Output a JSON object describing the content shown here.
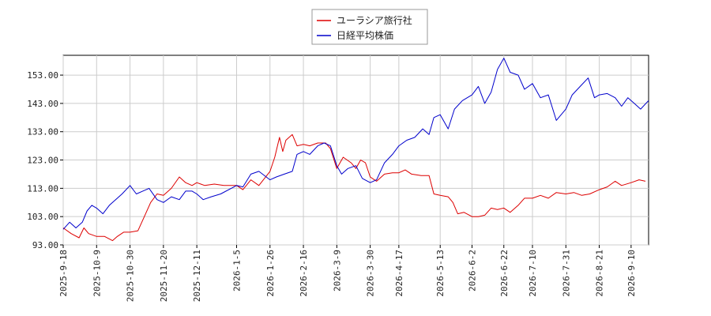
{
  "chart_data": {
    "type": "line",
    "title": "",
    "xlabel": "",
    "ylabel": "",
    "ylim": [
      93.0,
      160.0
    ],
    "yticks": [
      "93.00",
      "103.00",
      "113.00",
      "123.00",
      "133.00",
      "143.00",
      "153.00"
    ],
    "ytick_values": [
      93,
      103,
      113,
      123,
      133,
      143,
      153
    ],
    "xticks": [
      "2025-9-18",
      "2025-10-9",
      "2025-10-30",
      "2025-11-20",
      "2025-12-11",
      "2026-1-5",
      "2026-1-26",
      "2026-2-16",
      "2026-3-9",
      "2026-3-30",
      "2026-4-17",
      "2026-5-13",
      "2026-6-2",
      "2026-6-22",
      "2026-7-10",
      "2026-7-31",
      "2026-8-21",
      "2026-9-10"
    ],
    "x_range": [
      "2025-09-18",
      "2026-09-21"
    ],
    "grid": true,
    "legend_position": "top-center",
    "series": [
      {
        "name": "ユーラシア旅行社",
        "color": "#dd0000",
        "points": [
          [
            "2025-09-18",
            99
          ],
          [
            "2025-09-23",
            97
          ],
          [
            "2025-09-28",
            95.5
          ],
          [
            "2025-10-01",
            99
          ],
          [
            "2025-10-04",
            97
          ],
          [
            "2025-10-09",
            96
          ],
          [
            "2025-10-14",
            96
          ],
          [
            "2025-10-19",
            94.5
          ],
          [
            "2025-10-22",
            96
          ],
          [
            "2025-10-26",
            97.5
          ],
          [
            "2025-10-30",
            97.5
          ],
          [
            "2025-11-04",
            98
          ],
          [
            "2025-11-08",
            103
          ],
          [
            "2025-11-12",
            108
          ],
          [
            "2025-11-16",
            111
          ],
          [
            "2025-11-20",
            110.5
          ],
          [
            "2025-11-25",
            113
          ],
          [
            "2025-11-30",
            117
          ],
          [
            "2025-12-04",
            115
          ],
          [
            "2025-12-08",
            114
          ],
          [
            "2025-12-11",
            115
          ],
          [
            "2025-12-16",
            114
          ],
          [
            "2025-12-22",
            114.5
          ],
          [
            "2025-12-28",
            114
          ],
          [
            "2026-01-05",
            114
          ],
          [
            "2026-01-09",
            112.5
          ],
          [
            "2026-01-14",
            116
          ],
          [
            "2026-01-19",
            114
          ],
          [
            "2026-01-26",
            119
          ],
          [
            "2026-01-29",
            124
          ],
          [
            "2026-02-01",
            131
          ],
          [
            "2026-02-03",
            126
          ],
          [
            "2026-02-05",
            130
          ],
          [
            "2026-02-09",
            132
          ],
          [
            "2026-02-12",
            128
          ],
          [
            "2026-02-16",
            128.5
          ],
          [
            "2026-02-20",
            128
          ],
          [
            "2026-02-25",
            129
          ],
          [
            "2026-03-02",
            129
          ],
          [
            "2026-03-05",
            127
          ],
          [
            "2026-03-09",
            120
          ],
          [
            "2026-03-13",
            124
          ],
          [
            "2026-03-18",
            122
          ],
          [
            "2026-03-21",
            120
          ],
          [
            "2026-03-24",
            123
          ],
          [
            "2026-03-27",
            122
          ],
          [
            "2026-03-30",
            117
          ],
          [
            "2026-04-03",
            115.5
          ],
          [
            "2026-04-08",
            118
          ],
          [
            "2026-04-13",
            118.5
          ],
          [
            "2026-04-17",
            118.5
          ],
          [
            "2026-04-21",
            119.5
          ],
          [
            "2026-04-25",
            118
          ],
          [
            "2026-05-01",
            117.5
          ],
          [
            "2026-05-06",
            117.5
          ],
          [
            "2026-05-09",
            111
          ],
          [
            "2026-05-13",
            110.5
          ],
          [
            "2026-05-18",
            110
          ],
          [
            "2026-05-21",
            108
          ],
          [
            "2026-05-24",
            104
          ],
          [
            "2026-05-28",
            104.5
          ],
          [
            "2026-06-02",
            103
          ],
          [
            "2026-06-06",
            103
          ],
          [
            "2026-06-10",
            103.5
          ],
          [
            "2026-06-14",
            106
          ],
          [
            "2026-06-18",
            105.5
          ],
          [
            "2026-06-22",
            106
          ],
          [
            "2026-06-26",
            104.5
          ],
          [
            "2026-07-01",
            107
          ],
          [
            "2026-07-05",
            109.5
          ],
          [
            "2026-07-10",
            109.5
          ],
          [
            "2026-07-15",
            110.5
          ],
          [
            "2026-07-20",
            109.5
          ],
          [
            "2026-07-25",
            111.5
          ],
          [
            "2026-07-31",
            111
          ],
          [
            "2026-08-05",
            111.5
          ],
          [
            "2026-08-10",
            110.5
          ],
          [
            "2026-08-15",
            111
          ],
          [
            "2026-08-21",
            112.5
          ],
          [
            "2026-08-26",
            113.5
          ],
          [
            "2026-08-31",
            115.5
          ],
          [
            "2026-09-04",
            114
          ],
          [
            "2026-09-10",
            115
          ],
          [
            "2026-09-15",
            116
          ],
          [
            "2026-09-19",
            115.5
          ]
        ]
      },
      {
        "name": "日経平均株価",
        "color": "#0000cc",
        "points": [
          [
            "2025-09-18",
            98.5
          ],
          [
            "2025-09-22",
            101
          ],
          [
            "2025-09-26",
            99
          ],
          [
            "2025-09-30",
            101
          ],
          [
            "2025-10-03",
            105
          ],
          [
            "2025-10-06",
            107
          ],
          [
            "2025-10-09",
            106
          ],
          [
            "2025-10-13",
            104
          ],
          [
            "2025-10-17",
            107
          ],
          [
            "2025-10-21",
            109
          ],
          [
            "2025-10-25",
            111
          ],
          [
            "2025-10-30",
            114
          ],
          [
            "2025-11-03",
            111
          ],
          [
            "2025-11-07",
            112
          ],
          [
            "2025-11-11",
            113
          ],
          [
            "2025-11-16",
            109
          ],
          [
            "2025-11-20",
            108
          ],
          [
            "2025-11-25",
            110
          ],
          [
            "2025-11-30",
            109
          ],
          [
            "2025-12-04",
            112
          ],
          [
            "2025-12-08",
            112
          ],
          [
            "2025-12-11",
            111
          ],
          [
            "2025-12-15",
            109
          ],
          [
            "2025-12-20",
            110
          ],
          [
            "2025-12-26",
            111
          ],
          [
            "2026-01-05",
            114
          ],
          [
            "2026-01-09",
            113.5
          ],
          [
            "2026-01-14",
            118
          ],
          [
            "2026-01-19",
            119
          ],
          [
            "2026-01-26",
            116
          ],
          [
            "2026-01-30",
            117
          ],
          [
            "2026-02-04",
            118
          ],
          [
            "2026-02-09",
            119
          ],
          [
            "2026-02-12",
            125
          ],
          [
            "2026-02-16",
            126
          ],
          [
            "2026-02-20",
            125
          ],
          [
            "2026-02-25",
            128
          ],
          [
            "2026-03-01",
            129
          ],
          [
            "2026-03-05",
            128
          ],
          [
            "2026-03-09",
            121
          ],
          [
            "2026-03-12",
            118
          ],
          [
            "2026-03-16",
            120
          ],
          [
            "2026-03-21",
            121
          ],
          [
            "2026-03-25",
            116.5
          ],
          [
            "2026-03-30",
            115
          ],
          [
            "2026-04-03",
            116
          ],
          [
            "2026-04-08",
            122
          ],
          [
            "2026-04-13",
            125
          ],
          [
            "2026-04-17",
            128
          ],
          [
            "2026-04-22",
            130
          ],
          [
            "2026-04-27",
            131
          ],
          [
            "2026-05-02",
            134
          ],
          [
            "2026-05-06",
            132
          ],
          [
            "2026-05-09",
            138
          ],
          [
            "2026-05-13",
            139
          ],
          [
            "2026-05-18",
            134
          ],
          [
            "2026-05-22",
            141
          ],
          [
            "2026-05-27",
            144
          ],
          [
            "2026-06-02",
            146
          ],
          [
            "2026-06-06",
            149
          ],
          [
            "2026-06-10",
            143
          ],
          [
            "2026-06-14",
            147
          ],
          [
            "2026-06-18",
            155
          ],
          [
            "2026-06-22",
            159
          ],
          [
            "2026-06-26",
            154
          ],
          [
            "2026-07-01",
            153
          ],
          [
            "2026-07-05",
            148
          ],
          [
            "2026-07-10",
            150
          ],
          [
            "2026-07-15",
            145
          ],
          [
            "2026-07-20",
            146
          ],
          [
            "2026-07-25",
            137
          ],
          [
            "2026-07-31",
            141
          ],
          [
            "2026-08-04",
            146
          ],
          [
            "2026-08-09",
            149
          ],
          [
            "2026-08-14",
            152
          ],
          [
            "2026-08-18",
            145
          ],
          [
            "2026-08-21",
            146
          ],
          [
            "2026-08-26",
            146.5
          ],
          [
            "2026-08-31",
            145
          ],
          [
            "2026-09-04",
            142
          ],
          [
            "2026-09-08",
            145
          ],
          [
            "2026-09-12",
            143
          ],
          [
            "2026-09-16",
            141
          ],
          [
            "2026-09-21",
            144
          ]
        ]
      }
    ]
  }
}
